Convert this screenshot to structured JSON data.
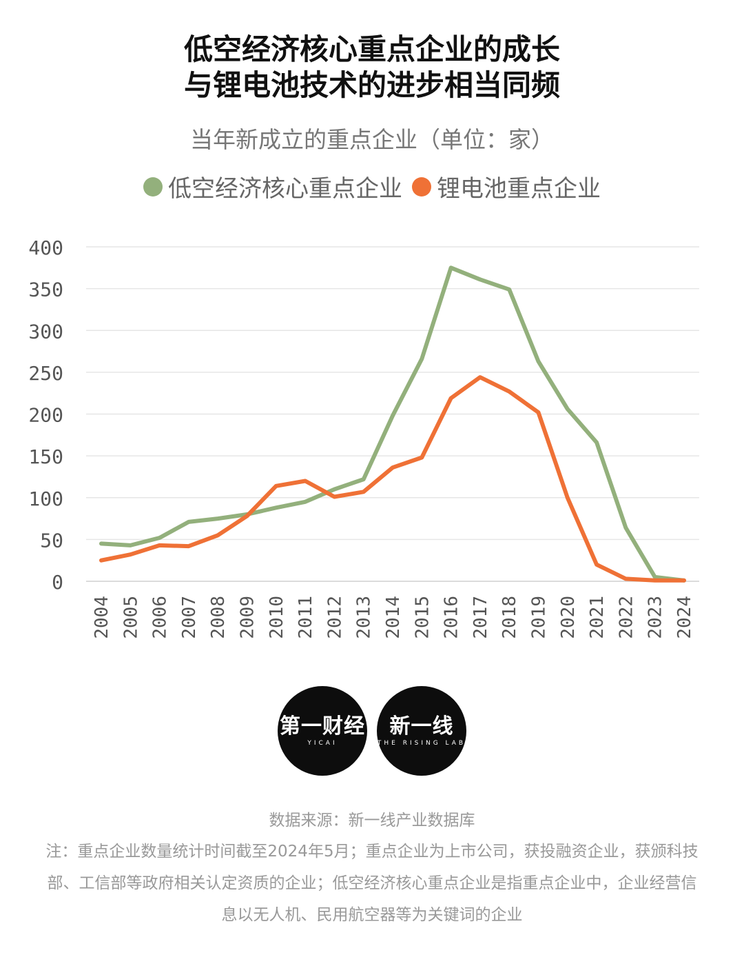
{
  "header": {
    "title_line1": "低空经济核心重点企业的成长",
    "title_line2": "与锂电池技术的进步相当同频",
    "subtitle": "当年新成立的重点企业（单位：家）"
  },
  "legend": [
    {
      "name": "低空经济核心重点企业",
      "color": "#93b07c"
    },
    {
      "name": "锂电池重点企业",
      "color": "#ef7136"
    }
  ],
  "chart_data": {
    "type": "line",
    "title": "低空经济核心重点企业的成长与锂电池技术的进步相当同频",
    "subtitle": "当年新成立的重点企业（单位：家）",
    "x": [
      2004,
      2005,
      2006,
      2007,
      2008,
      2009,
      2010,
      2011,
      2012,
      2013,
      2014,
      2015,
      2016,
      2017,
      2018,
      2019,
      2020,
      2021,
      2022,
      2023,
      2024
    ],
    "series": [
      {
        "name": "低空经济核心重点企业",
        "color": "#93b07c",
        "values": [
          45,
          43,
          52,
          71,
          75,
          80,
          88,
          95,
          110,
          122,
          198,
          266,
          375,
          361,
          349,
          263,
          206,
          166,
          64,
          5,
          1
        ]
      },
      {
        "name": "锂电池重点企业",
        "color": "#ef7136",
        "values": [
          25,
          32,
          43,
          42,
          55,
          78,
          114,
          120,
          101,
          107,
          136,
          148,
          219,
          244,
          227,
          202,
          100,
          20,
          3,
          1,
          1
        ]
      }
    ],
    "ylim": [
      0,
      400
    ],
    "yticks": [
      0,
      50,
      100,
      150,
      200,
      250,
      300,
      350,
      400
    ],
    "grid": true,
    "legend_position": "top"
  },
  "logos": {
    "yicai_main": "第一财经",
    "yicai_sub": "YICAI",
    "rising_main": "新一线",
    "rising_sub": "THE RISING LAB"
  },
  "footer": {
    "source": "数据来源：新一线产业数据库",
    "note": "注：重点企业数量统计时间截至2024年5月；重点企业为上市公司，获投融资企业，获颁科技部、工信部等政府相关认定资质的企业；低空经济核心重点企业是指重点企业中，企业经营信息以无人机、民用航空器等为关键词的企业"
  }
}
